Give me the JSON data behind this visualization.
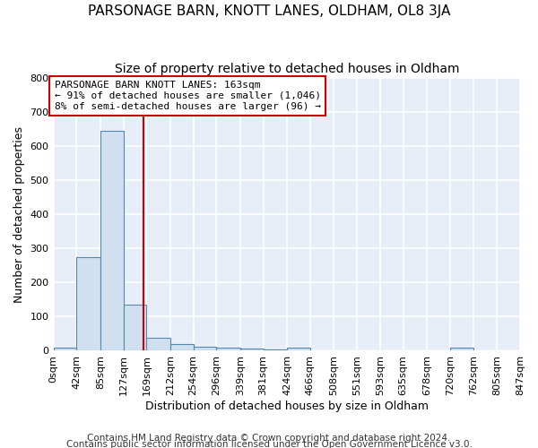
{
  "title1": "PARSONAGE BARN, KNOTT LANES, OLDHAM, OL8 3JA",
  "title2": "Size of property relative to detached houses in Oldham",
  "xlabel": "Distribution of detached houses by size in Oldham",
  "ylabel": "Number of detached properties",
  "bin_edges": [
    0,
    42,
    85,
    127,
    169,
    212,
    254,
    296,
    339,
    381,
    424,
    466,
    508,
    551,
    593,
    635,
    678,
    720,
    762,
    805,
    847
  ],
  "bar_heights": [
    8,
    275,
    645,
    135,
    38,
    20,
    12,
    10,
    7,
    5,
    8,
    0,
    0,
    0,
    0,
    0,
    0,
    8,
    0,
    0
  ],
  "bar_color": "#d0e0f0",
  "bar_edge_color": "#5588aa",
  "bar_linewidth": 0.8,
  "vline_x": 163,
  "vline_color": "#cc0000",
  "vline_linewidth": 1.5,
  "annotation_line1": "PARSONAGE BARN KNOTT LANES: 163sqm",
  "annotation_line2": "← 91% of detached houses are smaller (1,046)",
  "annotation_line3": "8% of semi-detached houses are larger (96) →",
  "annotation_box_color": "#ffffff",
  "annotation_box_edge": "#cc0000",
  "ylim": [
    0,
    800
  ],
  "yticks": [
    0,
    100,
    200,
    300,
    400,
    500,
    600,
    700,
    800
  ],
  "footer1": "Contains HM Land Registry data © Crown copyright and database right 2024.",
  "footer2": "Contains public sector information licensed under the Open Government Licence v3.0.",
  "background_color": "#e8eef8",
  "grid_color": "#ffffff",
  "title1_fontsize": 11,
  "title2_fontsize": 10,
  "xlabel_fontsize": 9,
  "ylabel_fontsize": 9,
  "tick_fontsize": 8,
  "annot_fontsize": 8,
  "footer_fontsize": 7.5
}
